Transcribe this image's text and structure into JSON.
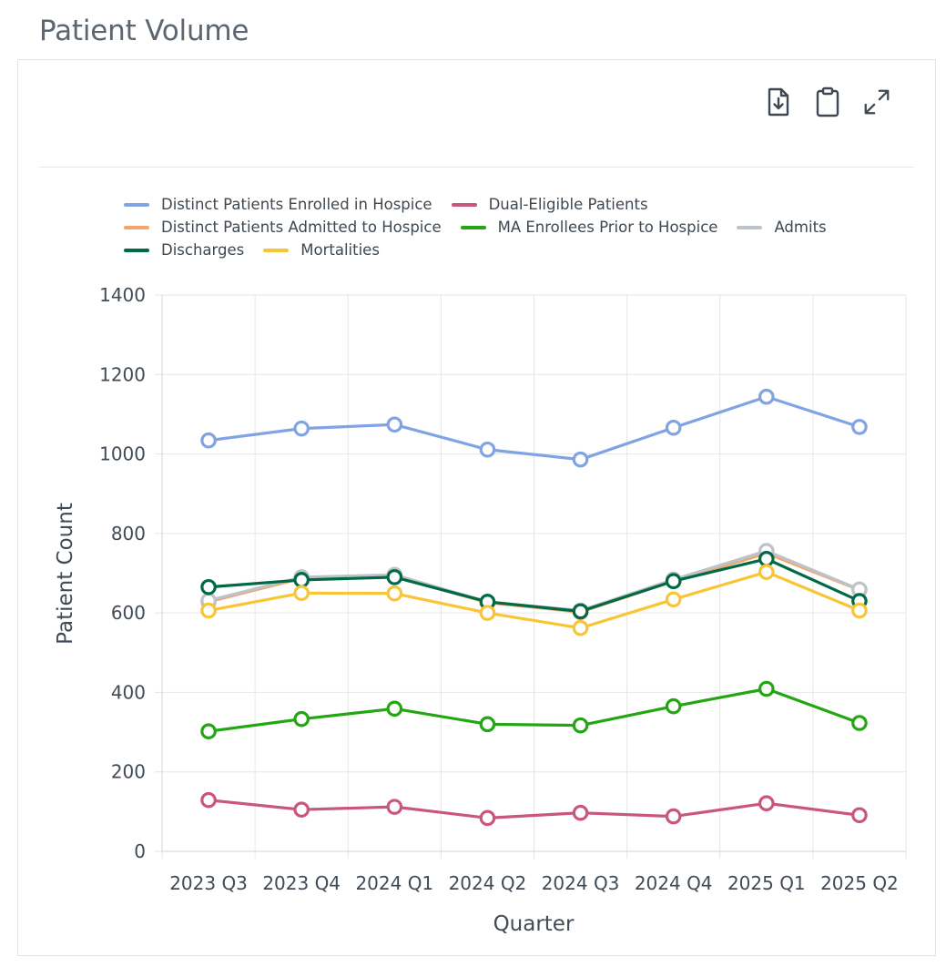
{
  "page": {
    "title": "Patient Volume"
  },
  "toolbar": {
    "icons": [
      "download-file-icon",
      "clipboard-icon",
      "expand-icon"
    ]
  },
  "chart_data": {
    "type": "line",
    "title": "",
    "xlabel": "Quarter",
    "ylabel": "Patient Count",
    "ylim": [
      0,
      1400
    ],
    "yticks": [
      "0",
      "200",
      "400",
      "600",
      "800",
      "1000",
      "1200",
      "1400"
    ],
    "categories": [
      "2023 Q3",
      "2023 Q4",
      "2024 Q1",
      "2024 Q2",
      "2024 Q3",
      "2024 Q4",
      "2025 Q1",
      "2025 Q2"
    ],
    "grid": true,
    "legend_position": "top",
    "legend_rows": [
      [
        0,
        1
      ],
      [
        2,
        3,
        4
      ],
      [
        5,
        6
      ]
    ],
    "series": [
      {
        "name": "Distinct Patients Enrolled in Hospice",
        "color": "#7fa3e3",
        "values": [
          1034,
          1064,
          1074,
          1011,
          986,
          1066,
          1144,
          1068
        ]
      },
      {
        "name": "Dual-Eligible Patients",
        "color": "#c9567e",
        "values": [
          129,
          105,
          112,
          84,
          97,
          88,
          121,
          91
        ]
      },
      {
        "name": "Distinct Patients Admitted to Hospice",
        "color": "#f4a56b",
        "values": [
          628,
          687,
          692,
          626,
          602,
          680,
          750,
          658
        ]
      },
      {
        "name": "MA Enrollees Prior to Hospice",
        "color": "#22a612",
        "values": [
          302,
          333,
          359,
          320,
          317,
          365,
          409,
          323
        ]
      },
      {
        "name": "Admits",
        "color": "#bcc3cb",
        "values": [
          631,
          690,
          696,
          628,
          606,
          684,
          756,
          659
        ]
      },
      {
        "name": "Discharges",
        "color": "#006a45",
        "values": [
          665,
          683,
          690,
          628,
          604,
          680,
          736,
          630
        ]
      },
      {
        "name": "Mortalities",
        "color": "#f8c534",
        "values": [
          606,
          650,
          649,
          600,
          562,
          634,
          703,
          606
        ]
      }
    ]
  }
}
